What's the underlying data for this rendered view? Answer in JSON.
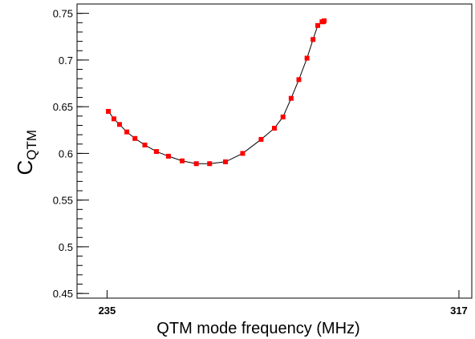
{
  "chart_data": {
    "type": "scatter",
    "title": "",
    "xlabel": "QTM mode frequency (MHz)",
    "ylabel_main": "C",
    "ylabel_sub": "QTM",
    "xlim": [
      228,
      320
    ],
    "ylim": [
      0.445,
      0.76
    ],
    "x_tick_labels": [
      "235",
      "317"
    ],
    "x_tick_values": [
      235,
      317
    ],
    "y_tick_values": [
      0.45,
      0.5,
      0.55,
      0.6,
      0.65,
      0.7,
      0.75
    ],
    "y_tick_labels": [
      "0.45",
      "0.5",
      "0.55",
      "0.6",
      "0.65",
      "0.7",
      "0.75"
    ],
    "grid": false,
    "marker_color": "#ff0000",
    "line_color": "#000000",
    "series": [
      {
        "x": [
          235.3,
          236.6,
          237.9,
          239.6,
          241.5,
          243.8,
          246.5,
          249.3,
          252.5,
          255.8,
          258.9,
          262.6,
          266.6,
          270.9,
          274.0,
          276.0,
          277.9,
          279.7,
          281.6,
          283.0,
          284.1,
          285.1,
          285.4,
          285.6
        ],
        "y": [
          0.645,
          0.637,
          0.631,
          0.623,
          0.616,
          0.609,
          0.602,
          0.597,
          0.592,
          0.589,
          0.589,
          0.591,
          0.6,
          0.615,
          0.627,
          0.639,
          0.659,
          0.679,
          0.702,
          0.722,
          0.737,
          0.741,
          0.741,
          0.742
        ]
      }
    ]
  }
}
